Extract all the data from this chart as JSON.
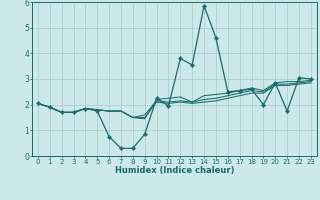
{
  "title": "",
  "xlabel": "Humidex (Indice chaleur)",
  "xlim": [
    -0.5,
    23.5
  ],
  "ylim": [
    0,
    6
  ],
  "xticks": [
    0,
    1,
    2,
    3,
    4,
    5,
    6,
    7,
    8,
    9,
    10,
    11,
    12,
    13,
    14,
    15,
    16,
    17,
    18,
    19,
    20,
    21,
    22,
    23
  ],
  "yticks": [
    0,
    1,
    2,
    3,
    4,
    5,
    6
  ],
  "background_color": "#cce8e8",
  "grid_color": "#aad0d0",
  "line_color": "#1a6b6b",
  "lines": [
    [
      2.05,
      1.9,
      1.7,
      1.7,
      1.85,
      1.75,
      0.75,
      0.3,
      0.3,
      0.85,
      2.25,
      1.95,
      3.8,
      3.55,
      5.85,
      4.6,
      2.5,
      2.55,
      2.6,
      2.0,
      2.85,
      1.75,
      3.05,
      3.0
    ],
    [
      2.05,
      1.9,
      1.7,
      1.7,
      1.85,
      1.8,
      1.75,
      1.75,
      1.5,
      1.45,
      2.2,
      2.25,
      2.3,
      2.1,
      2.35,
      2.4,
      2.45,
      2.55,
      2.65,
      2.55,
      2.85,
      2.9,
      2.9,
      2.95
    ],
    [
      2.05,
      1.9,
      1.7,
      1.7,
      1.85,
      1.8,
      1.75,
      1.75,
      1.5,
      1.6,
      2.15,
      2.1,
      2.15,
      2.1,
      2.2,
      2.25,
      2.35,
      2.45,
      2.55,
      2.5,
      2.8,
      2.8,
      2.85,
      2.9
    ],
    [
      2.05,
      1.9,
      1.7,
      1.7,
      1.85,
      1.8,
      1.75,
      1.75,
      1.5,
      1.5,
      2.1,
      2.05,
      2.1,
      2.05,
      2.1,
      2.15,
      2.25,
      2.35,
      2.45,
      2.45,
      2.75,
      2.75,
      2.8,
      2.85
    ]
  ],
  "marker_line_index": 0,
  "xlabel_fontsize": 6.0,
  "tick_fontsize": 5.0,
  "linewidth_main": 0.9,
  "linewidth_smooth": 0.75,
  "markersize": 2.2
}
